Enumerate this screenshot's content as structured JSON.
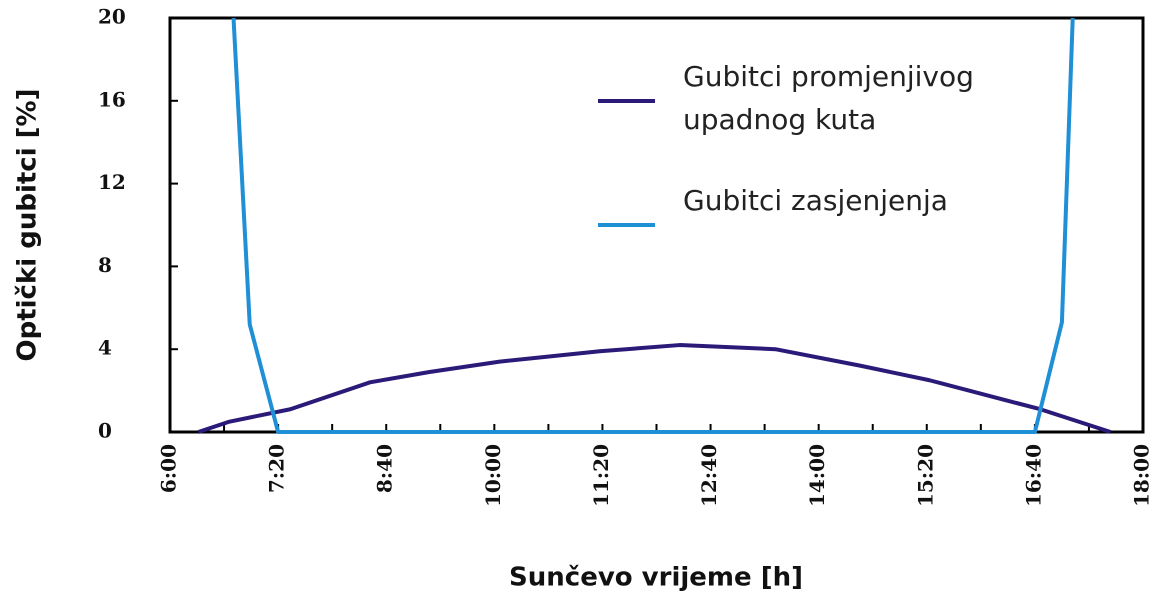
{
  "chart_data": {
    "type": "line",
    "xlabel": "Sunčevo vrijeme [h]",
    "ylabel": "Optički gubitci [%]",
    "xlim": [
      360,
      1080
    ],
    "xticks": [
      {
        "value": 360,
        "label": "6:00"
      },
      {
        "value": 440,
        "label": "7:20"
      },
      {
        "value": 520,
        "label": "8:40"
      },
      {
        "value": 600,
        "label": "10:00"
      },
      {
        "value": 680,
        "label": "11:20"
      },
      {
        "value": 760,
        "label": "12:40"
      },
      {
        "value": 840,
        "label": "14:00"
      },
      {
        "value": 920,
        "label": "15:20"
      },
      {
        "value": 1000,
        "label": "16:40"
      },
      {
        "value": 1080,
        "label": "18:00"
      }
    ],
    "xminorticks": [
      400,
      480,
      560,
      640,
      720,
      800,
      880,
      960,
      1040
    ],
    "ylim": [
      0,
      20
    ],
    "yticks": [
      0,
      4,
      8,
      12,
      16,
      20
    ],
    "series": [
      {
        "name": "Gubitci promjenjivog upadnog kuta",
        "color": "#2b1a78",
        "x": [
          381,
          404,
          449,
          508,
          552,
          604,
          678,
          737,
          808,
          871,
          922,
          1004,
          1056
        ],
        "values": [
          0,
          0.5,
          1.1,
          2.4,
          2.9,
          3.4,
          3.9,
          4.2,
          4.0,
          3.2,
          2.5,
          1.1,
          0
        ]
      },
      {
        "name": "Gubitci zasjenjenja",
        "color": "#1f8fd6",
        "x": [
          407,
          419,
          440,
          1000,
          1020,
          1028
        ],
        "values": [
          20,
          5.2,
          0,
          0,
          5.3,
          20
        ]
      }
    ]
  }
}
